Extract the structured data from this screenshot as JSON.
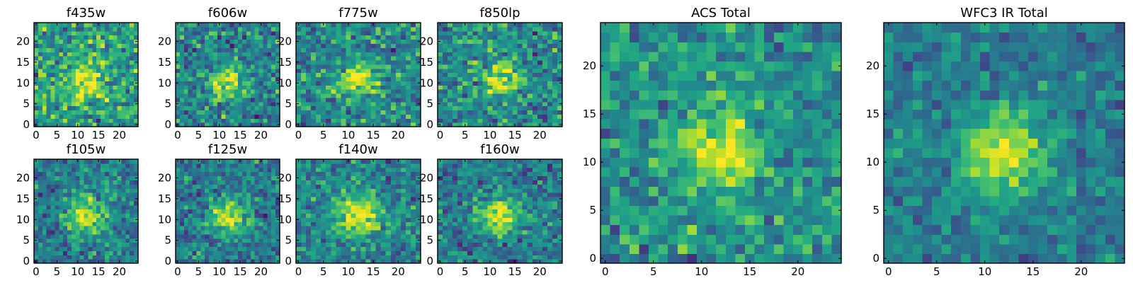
{
  "figure": {
    "background": "#ffffff",
    "colormap": "viridis"
  },
  "chart_data": [
    {
      "type": "heatmap",
      "title": "f435w",
      "grid": [
        25,
        25
      ],
      "xlim": [
        0,
        24
      ],
      "ylim": [
        0,
        24
      ],
      "xticks": [
        "0",
        "5",
        "10",
        "15",
        "20"
      ],
      "yticks": [
        "0",
        "5",
        "10",
        "15",
        "20"
      ],
      "center": [
        12,
        11
      ],
      "peak": 0.72,
      "sigma": 3.5,
      "noise": 0.5,
      "base": 0.55,
      "seed": 11
    },
    {
      "type": "heatmap",
      "title": "f606w",
      "grid": [
        25,
        25
      ],
      "xlim": [
        0,
        24
      ],
      "ylim": [
        0,
        24
      ],
      "xticks": [
        "0",
        "5",
        "10",
        "15",
        "20"
      ],
      "yticks": [
        "0",
        "5",
        "10",
        "15",
        "20"
      ],
      "center": [
        12,
        10
      ],
      "peak": 0.85,
      "sigma": 2.8,
      "noise": 0.45,
      "base": 0.45,
      "seed": 23
    },
    {
      "type": "heatmap",
      "title": "f775w",
      "grid": [
        25,
        25
      ],
      "xlim": [
        0,
        24
      ],
      "ylim": [
        0,
        24
      ],
      "xticks": [
        "0",
        "5",
        "10",
        "15",
        "20"
      ],
      "yticks": [
        "0",
        "5",
        "10",
        "15",
        "20"
      ],
      "center": [
        12,
        11
      ],
      "peak": 0.9,
      "sigma": 2.6,
      "noise": 0.45,
      "base": 0.48,
      "seed": 37
    },
    {
      "type": "heatmap",
      "title": "f850lp",
      "grid": [
        25,
        25
      ],
      "xlim": [
        0,
        24
      ],
      "ylim": [
        0,
        24
      ],
      "xticks": [
        "0",
        "5",
        "10",
        "15",
        "20"
      ],
      "yticks": [
        "0",
        "5",
        "10",
        "15",
        "20"
      ],
      "center": [
        12,
        11
      ],
      "peak": 0.9,
      "sigma": 2.5,
      "noise": 0.45,
      "base": 0.48,
      "seed": 41
    },
    {
      "type": "heatmap",
      "title": "f105w",
      "grid": [
        25,
        25
      ],
      "xlim": [
        0,
        24
      ],
      "ylim": [
        0,
        24
      ],
      "xticks": [
        "0",
        "5",
        "10",
        "15",
        "20"
      ],
      "yticks": [
        "0",
        "5",
        "10",
        "15",
        "20"
      ],
      "center": [
        12,
        11
      ],
      "peak": 0.95,
      "sigma": 3.2,
      "noise": 0.38,
      "base": 0.42,
      "seed": 53
    },
    {
      "type": "heatmap",
      "title": "f125w",
      "grid": [
        25,
        25
      ],
      "xlim": [
        0,
        24
      ],
      "ylim": [
        0,
        24
      ],
      "xticks": [
        "0",
        "5",
        "10",
        "15",
        "20"
      ],
      "yticks": [
        "0",
        "5",
        "10",
        "15",
        "20"
      ],
      "center": [
        12,
        11
      ],
      "peak": 0.95,
      "sigma": 3.0,
      "noise": 0.38,
      "base": 0.42,
      "seed": 67
    },
    {
      "type": "heatmap",
      "title": "f140w",
      "grid": [
        25,
        25
      ],
      "xlim": [
        0,
        24
      ],
      "ylim": [
        0,
        24
      ],
      "xticks": [
        "0",
        "5",
        "10",
        "15",
        "20"
      ],
      "yticks": [
        "0",
        "5",
        "10",
        "15",
        "20"
      ],
      "center": [
        12,
        11
      ],
      "peak": 0.95,
      "sigma": 3.3,
      "noise": 0.38,
      "base": 0.45,
      "seed": 79
    },
    {
      "type": "heatmap",
      "title": "f160w",
      "grid": [
        25,
        25
      ],
      "xlim": [
        0,
        24
      ],
      "ylim": [
        0,
        24
      ],
      "xticks": [
        "0",
        "5",
        "10",
        "15",
        "20"
      ],
      "yticks": [
        "0",
        "5",
        "10",
        "15",
        "20"
      ],
      "center": [
        12,
        11
      ],
      "peak": 0.95,
      "sigma": 3.0,
      "noise": 0.38,
      "base": 0.42,
      "seed": 83
    },
    {
      "type": "heatmap",
      "title": "ACS Total",
      "grid": [
        25,
        25
      ],
      "xlim": [
        0,
        24
      ],
      "ylim": [
        0,
        24
      ],
      "xticks": [
        "0",
        "5",
        "10",
        "15",
        "20"
      ],
      "yticks": [
        "0",
        "5",
        "10",
        "15",
        "20"
      ],
      "center": [
        12,
        11
      ],
      "peak": 0.95,
      "sigma": 2.6,
      "noise": 0.38,
      "base": 0.5,
      "seed": 97
    },
    {
      "type": "heatmap",
      "title": "WFC3 IR Total",
      "grid": [
        25,
        25
      ],
      "xlim": [
        0,
        24
      ],
      "ylim": [
        0,
        24
      ],
      "xticks": [
        "0",
        "5",
        "10",
        "15",
        "20"
      ],
      "yticks": [
        "0",
        "5",
        "10",
        "15",
        "20"
      ],
      "center": [
        12,
        11
      ],
      "peak": 0.95,
      "sigma": 3.2,
      "noise": 0.28,
      "base": 0.42,
      "seed": 101
    }
  ]
}
